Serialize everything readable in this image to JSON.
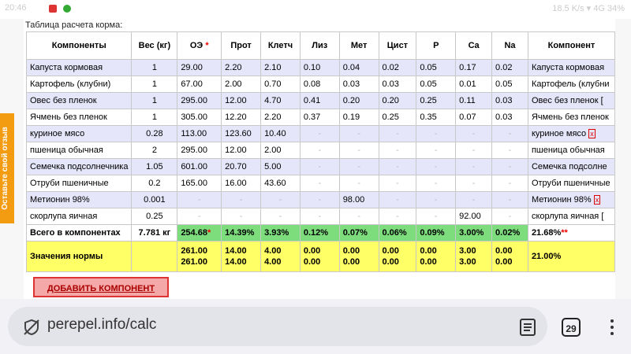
{
  "status_bar": {
    "time": "20:46",
    "right": "18.5 K/s ▾ 4G 34%"
  },
  "feedback_tab": "Оставьте свой отзыв",
  "table_title": "Таблица расчета корма:",
  "columns": [
    "Компоненты",
    "Вес (кг)",
    "ОЭ",
    "Прот",
    "Клетч",
    "Лиз",
    "Мет",
    "Цист",
    "P",
    "Ca",
    "Na",
    "Компонент"
  ],
  "rows": [
    {
      "name": "Капуста кормовая",
      "weight": "1",
      "values": [
        "29.00",
        "2.20",
        "2.10",
        "0.10",
        "0.04",
        "0.02",
        "0.05",
        "0.17",
        "0.02"
      ],
      "right": "Капуста кормовая"
    },
    {
      "name": "Картофель (клубни)",
      "weight": "1",
      "values": [
        "67.00",
        "2.00",
        "0.70",
        "0.08",
        "0.03",
        "0.03",
        "0.05",
        "0.01",
        "0.05"
      ],
      "right": "Картофель (клубни"
    },
    {
      "name": "Овес без пленок",
      "weight": "1",
      "values": [
        "295.00",
        "12.00",
        "4.70",
        "0.41",
        "0.20",
        "0.20",
        "0.25",
        "0.11",
        "0.03"
      ],
      "right": "Овес без пленок ["
    },
    {
      "name": "Ячмень без пленок",
      "weight": "1",
      "values": [
        "305.00",
        "12.20",
        "2.20",
        "0.37",
        "0.19",
        "0.25",
        "0.35",
        "0.07",
        "0.03"
      ],
      "right": "Ячмень без пленок"
    },
    {
      "name": "куриное мясо",
      "weight": "0.28",
      "values": [
        "113.00",
        "123.60",
        "10.40",
        "-",
        "-",
        "-",
        "-",
        "-",
        "-"
      ],
      "right": "куриное мясо",
      "right_x": "x"
    },
    {
      "name": "пшеница обычная",
      "weight": "2",
      "values": [
        "295.00",
        "12.00",
        "2.00",
        "-",
        "-",
        "-",
        "-",
        "-",
        "-"
      ],
      "right": "пшеница обычная"
    },
    {
      "name": "Семечка подсолнечника",
      "weight": "1.05",
      "values": [
        "601.00",
        "20.70",
        "5.00",
        "-",
        "-",
        "-",
        "-",
        "-",
        "-"
      ],
      "right": "Семечка подсолне"
    },
    {
      "name": "Отруби пшеничные",
      "weight": "0.2",
      "values": [
        "165.00",
        "16.00",
        "43.60",
        "-",
        "-",
        "-",
        "-",
        "-",
        "-"
      ],
      "right": "Отруби пшеничные"
    },
    {
      "name": "Метионин 98%",
      "weight": "0.001",
      "values": [
        "-",
        "-",
        "-",
        "-",
        "98.00",
        "-",
        "-",
        "-",
        "-"
      ],
      "right": "Метионин 98%",
      "right_x": "x"
    },
    {
      "name": "скорлупа яичная",
      "weight": "0.25",
      "values": [
        "-",
        "-",
        "-",
        "-",
        "-",
        "-",
        "-",
        "92.00",
        "-"
      ],
      "right": "скорлупа яичная ["
    }
  ],
  "total": {
    "label": "Всего в компонентах",
    "weight": "7.781 кг",
    "values": [
      "254.68",
      "14.39%",
      "3.93%",
      "0.12%",
      "0.07%",
      "0.06%",
      "0.09%",
      "3.00%",
      "0.02%"
    ],
    "right": "21.68%",
    "right_mark": "**",
    "oe_mark": "*"
  },
  "norm": {
    "label": "Значения нормы",
    "min": [
      "261.00",
      "14.00",
      "4.00",
      "0.00",
      "0.00",
      "0.00",
      "0.00",
      "3.00",
      "0.00"
    ],
    "max": [
      "261.00",
      "14.00",
      "4.00",
      "0.00",
      "0.00",
      "0.00",
      "0.00",
      "3.00",
      "0.00"
    ],
    "right": "21.00%"
  },
  "add_button": "ДОБАВИТЬ КОМПОНЕНТ",
  "browser": {
    "url": "perepel.info/calc",
    "tab_count": "29"
  }
}
